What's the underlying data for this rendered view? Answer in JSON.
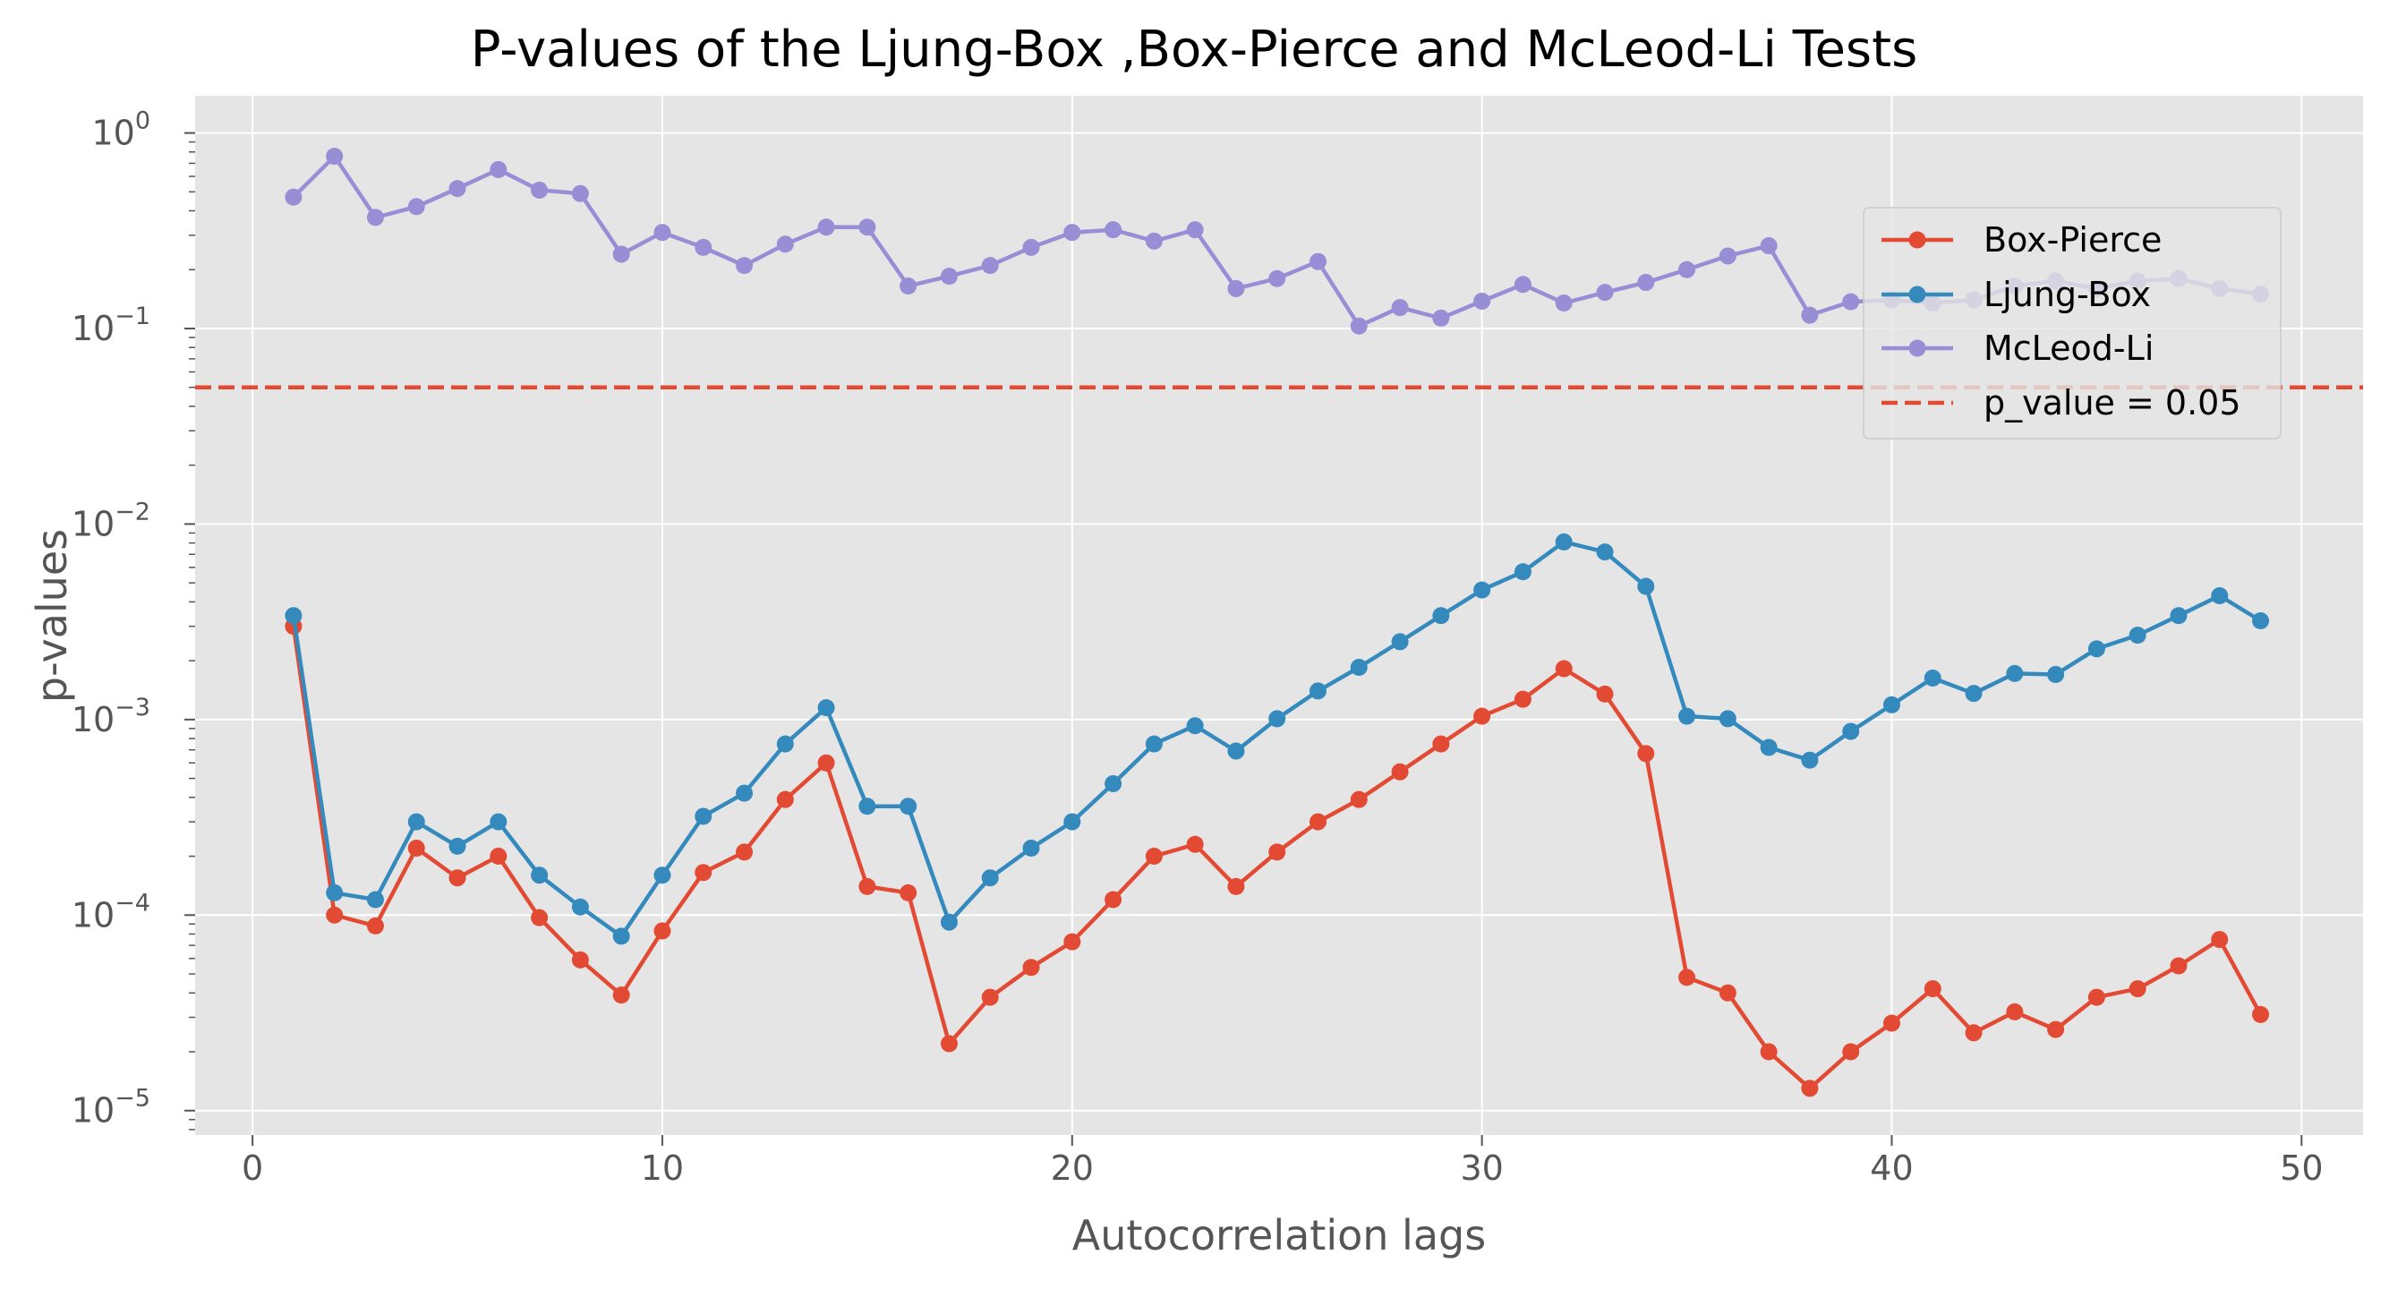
{
  "chart_data": {
    "type": "line",
    "title": "P-values of the Ljung-Box ,Box-Pierce and McLeod-Li Tests",
    "xlabel": "Autocorrelation lags",
    "ylabel": "p-values",
    "yscale": "log",
    "xlim": [
      -1.4,
      51.5
    ],
    "ylim": [
      7.5e-06,
      1.55
    ],
    "xticks": [
      "0",
      "10",
      "20",
      "30",
      "40",
      "50"
    ],
    "yticks": [
      {
        "base": "10",
        "exp": "0"
      },
      {
        "base": "10",
        "exp": "−1"
      },
      {
        "base": "10",
        "exp": "−2"
      },
      {
        "base": "10",
        "exp": "−3"
      },
      {
        "base": "10",
        "exp": "−4"
      },
      {
        "base": "10",
        "exp": "−5"
      }
    ],
    "grid": true,
    "legend_position": "upper-right",
    "x": [
      1,
      2,
      3,
      4,
      5,
      6,
      7,
      8,
      9,
      10,
      11,
      12,
      13,
      14,
      15,
      16,
      17,
      18,
      19,
      20,
      21,
      22,
      23,
      24,
      25,
      26,
      27,
      28,
      29,
      30,
      31,
      32,
      33,
      34,
      35,
      36,
      37,
      38,
      39,
      40,
      41,
      42,
      43,
      44,
      45,
      46,
      47,
      48,
      49
    ],
    "series": [
      {
        "name": "Box-Pierce",
        "color": "#e24a33",
        "values": [
          0.003,
          0.0001,
          8.8e-05,
          0.00022,
          0.000155,
          0.0002,
          9.7e-05,
          5.9e-05,
          3.9e-05,
          8.3e-05,
          0.000165,
          0.00021,
          0.00039,
          0.0006,
          0.00014,
          0.00013,
          2.2e-05,
          3.8e-05,
          5.4e-05,
          7.3e-05,
          0.00012,
          0.0002,
          0.00023,
          0.00014,
          0.00021,
          0.0003,
          0.00039,
          0.00054,
          0.00075,
          0.00104,
          0.00127,
          0.00182,
          0.00135,
          0.00067,
          4.8e-05,
          4e-05,
          2e-05,
          1.3e-05,
          2e-05,
          2.8e-05,
          4.2e-05,
          2.5e-05,
          3.2e-05,
          2.6e-05,
          3.8e-05,
          4.2e-05,
          5.5e-05,
          7.5e-05,
          3.1e-05
        ]
      },
      {
        "name": "Ljung-Box",
        "color": "#348abd",
        "values": [
          0.0034,
          0.00013,
          0.00012,
          0.0003,
          0.000225,
          0.0003,
          0.00016,
          0.00011,
          7.8e-05,
          0.00016,
          0.00032,
          0.00042,
          0.00075,
          0.00115,
          0.00036,
          0.00036,
          9.2e-05,
          0.000155,
          0.00022,
          0.0003,
          0.00047,
          0.00075,
          0.00093,
          0.00069,
          0.00101,
          0.0014,
          0.00185,
          0.0025,
          0.0034,
          0.0046,
          0.0057,
          0.0081,
          0.0072,
          0.0048,
          0.00104,
          0.00101,
          0.00072,
          0.00062,
          0.00087,
          0.00119,
          0.00163,
          0.00136,
          0.00172,
          0.0017,
          0.0023,
          0.0027,
          0.0034,
          0.0043,
          0.0032
        ]
      },
      {
        "name": "McLeod-Li",
        "color": "#988ed5",
        "values": [
          0.47,
          0.76,
          0.37,
          0.42,
          0.52,
          0.65,
          0.51,
          0.49,
          0.24,
          0.31,
          0.26,
          0.21,
          0.27,
          0.33,
          0.33,
          0.165,
          0.185,
          0.21,
          0.26,
          0.31,
          0.32,
          0.28,
          0.32,
          0.16,
          0.18,
          0.22,
          0.103,
          0.128,
          0.113,
          0.138,
          0.168,
          0.135,
          0.153,
          0.172,
          0.2,
          0.235,
          0.265,
          0.117,
          0.137,
          0.14,
          0.135,
          0.14,
          0.165,
          0.175,
          0.16,
          0.175,
          0.18,
          0.16,
          0.15
        ]
      }
    ],
    "reference_line": {
      "name": "p_value = 0.05",
      "value": 0.05,
      "color": "#e24a33",
      "style": "dashed"
    }
  },
  "legend": {
    "entries": [
      "Box-Pierce",
      "Ljung-Box",
      "McLeod-Li",
      "p_value = 0.05"
    ]
  }
}
